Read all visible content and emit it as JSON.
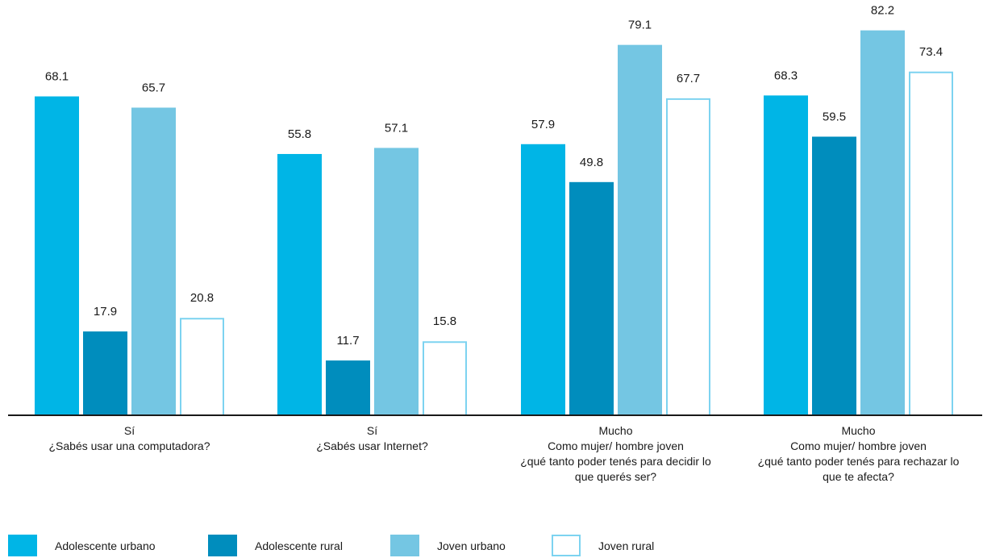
{
  "chart_data": {
    "type": "bar",
    "title": "",
    "xlabel": "",
    "ylabel": "",
    "ylim": [
      0,
      85
    ],
    "grid": false,
    "legend_position": "bottom-left",
    "categories": [
      {
        "lines": [
          "Sí",
          "¿Sabés usar una computadora?"
        ]
      },
      {
        "lines": [
          "Sí",
          "¿Sabés usar Internet?"
        ]
      },
      {
        "lines": [
          "Mucho",
          "Como mujer/ hombre joven",
          "¿qué tanto poder tenés para decidir lo",
          "que querés ser?"
        ]
      },
      {
        "lines": [
          "Mucho",
          "Como mujer/ hombre joven",
          "¿qué tanto poder tenés para rechazar lo",
          "que te afecta?"
        ]
      }
    ],
    "series": [
      {
        "name": "Adolescente urbano",
        "color": "#00b5e6",
        "style": "filled",
        "values": [
          68.1,
          55.8,
          57.9,
          68.3
        ],
        "labels": [
          "68.1",
          "55.8",
          "57.9",
          "68.3"
        ]
      },
      {
        "name": "Adolescente rural",
        "color": "#008dbd",
        "style": "filled",
        "values": [
          17.9,
          11.7,
          49.8,
          59.5
        ],
        "labels": [
          "17.9",
          "11.7",
          "49.8",
          "59.5"
        ]
      },
      {
        "name": "Joven urbano",
        "color": "#74c6e3",
        "style": "filled",
        "values": [
          65.7,
          57.1,
          79.1,
          82.2
        ],
        "labels": [
          "65.7",
          "57.1",
          "79.1",
          "82.2"
        ]
      },
      {
        "name": "Joven rural",
        "color": "#7dd3f0",
        "style": "outline",
        "values": [
          20.8,
          15.8,
          67.7,
          73.4
        ],
        "labels": [
          "20.8",
          "15.8",
          "67.7",
          "73.4"
        ]
      }
    ]
  }
}
